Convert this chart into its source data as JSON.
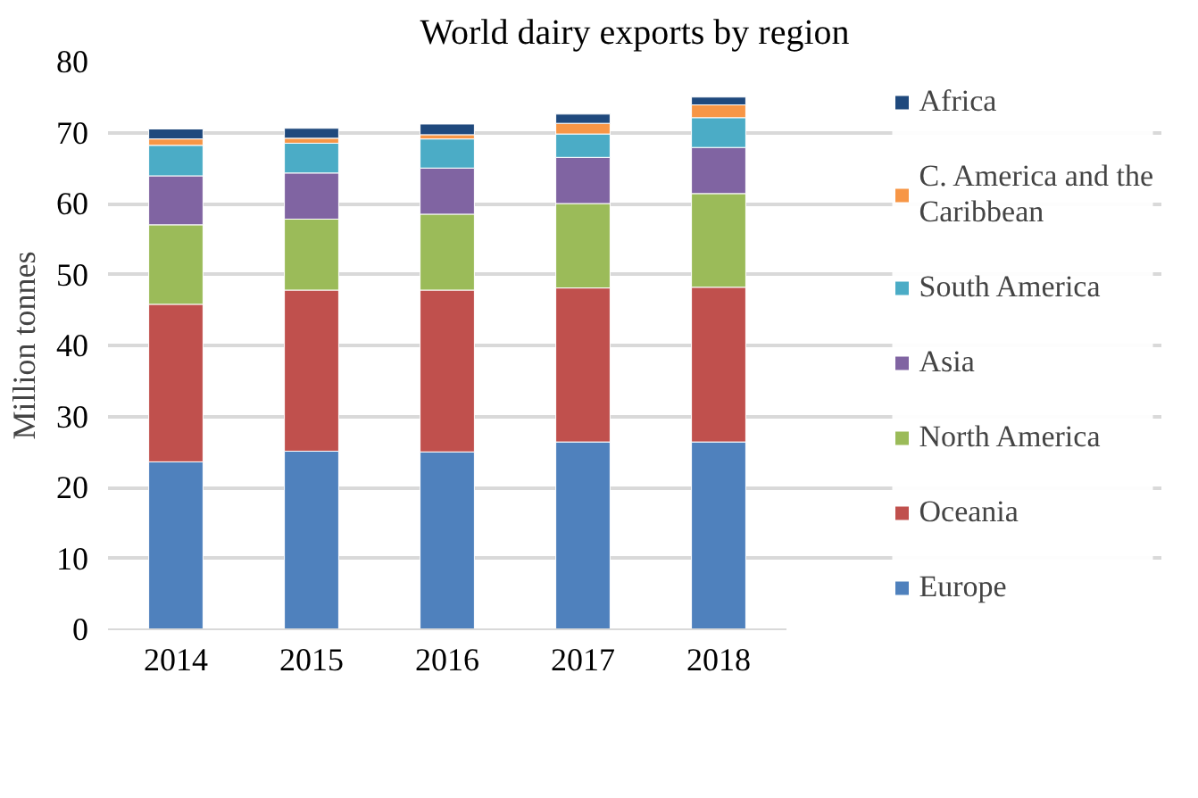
{
  "chart_data": {
    "type": "bar",
    "title": "World dairy exports by region",
    "ylabel": "Million tonnes",
    "categories": [
      "2014",
      "2015",
      "2016",
      "2017",
      "2018"
    ],
    "stacked": true,
    "ylim": [
      0,
      80
    ],
    "yticks": [
      0,
      10,
      20,
      30,
      40,
      50,
      60,
      70,
      80
    ],
    "grid": "y",
    "legend": "right",
    "series": [
      {
        "name": "Europe",
        "color": "#4f81bd",
        "values": [
          23.6,
          25.1,
          25.0,
          26.4,
          26.4
        ]
      },
      {
        "name": "Oceania",
        "color": "#c0504d",
        "values": [
          22.2,
          22.7,
          22.8,
          21.7,
          21.8
        ]
      },
      {
        "name": "North America",
        "color": "#9bbb59",
        "values": [
          11.2,
          10.0,
          10.7,
          11.9,
          13.2
        ]
      },
      {
        "name": "Asia",
        "color": "#8064a2",
        "values": [
          6.9,
          6.5,
          6.5,
          6.5,
          6.5
        ]
      },
      {
        "name": "South America",
        "color": "#4bacc6",
        "values": [
          4.3,
          4.2,
          4.1,
          3.3,
          4.2
        ]
      },
      {
        "name": "C. America and the Caribbean",
        "color": "#f79646",
        "values": [
          0.9,
          0.7,
          0.6,
          1.5,
          1.8
        ]
      },
      {
        "name": "Africa",
        "color": "#1f497d",
        "values": [
          1.4,
          1.4,
          1.5,
          1.3,
          1.1
        ]
      }
    ]
  }
}
